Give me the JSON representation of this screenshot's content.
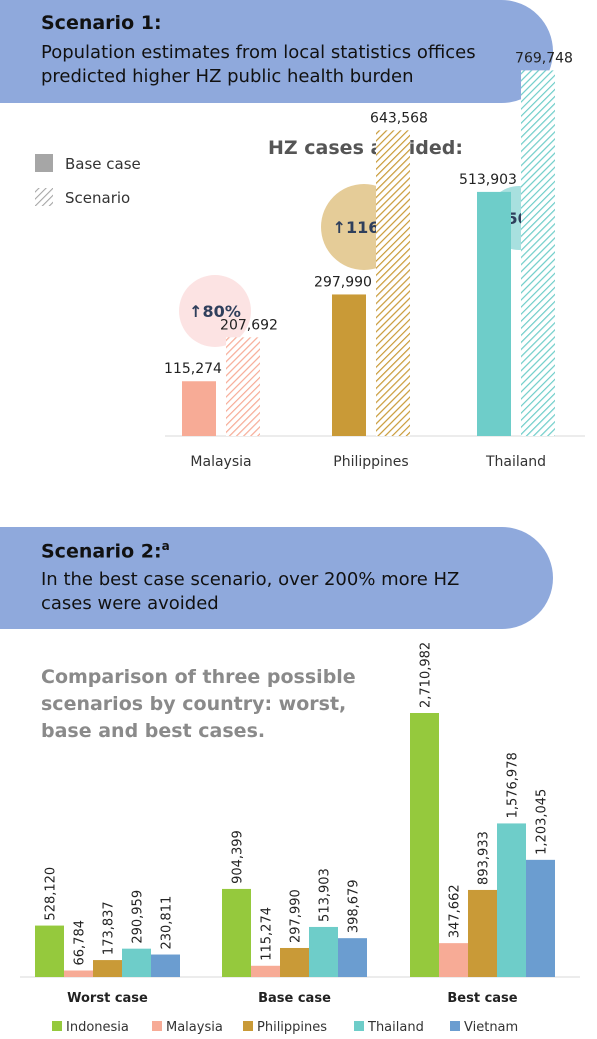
{
  "scenario1": {
    "title": "Scenario 1:",
    "text": "Population estimates from local statistics offices predicted higher HZ public health burden"
  },
  "scenario2": {
    "title": "Scenario 2:",
    "title_sup": "a",
    "text": "In the best case scenario, over 200% more HZ cases were avoided"
  },
  "colors": {
    "banner": "#8fa9dc",
    "Indonesia": "#95c93d",
    "Malaysia": "#f7ab96",
    "Philippines": "#c99a37",
    "Thailand": "#6ecdc9",
    "Vietnam": "#6b9dd0",
    "legend_base": "#a6a6a6",
    "legend_scenario": "#a6a6a6"
  },
  "chart_data": [
    {
      "type": "bar",
      "title": "HZ cases avoided:",
      "legend": [
        "Base case",
        "Scenario"
      ],
      "categories": [
        "Malaysia",
        "Philippines",
        "Thailand"
      ],
      "series": [
        {
          "name": "Base case",
          "values": [
            115274,
            297990,
            513903
          ]
        },
        {
          "name": "Scenario",
          "values": [
            207692,
            643568,
            769748
          ]
        }
      ],
      "labels": {
        "Base case": [
          "115,274",
          "297,990",
          "513,903"
        ],
        "Scenario": [
          "207,692",
          "643,568",
          "769,748"
        ]
      },
      "increase_labels": [
        "↑80%",
        "↑116%",
        "↑50%"
      ],
      "increase_colors": [
        "#fce3e3",
        "#e5cc98",
        "#a8e0df"
      ],
      "ylim": [
        0,
        800000
      ]
    },
    {
      "type": "bar",
      "title": "Comparison of three possible scenarios by country: worst, base and best cases.",
      "categories": [
        "Worst case",
        "Base case",
        "Best case"
      ],
      "series": [
        {
          "name": "Indonesia",
          "values": [
            528120,
            904399,
            2710982
          ],
          "labels": [
            "528,120",
            "904,399",
            "2,710,982"
          ]
        },
        {
          "name": "Malaysia",
          "values": [
            66784,
            115274,
            347662
          ],
          "labels": [
            "66,784",
            "115,274",
            "347,662"
          ]
        },
        {
          "name": "Philippines",
          "values": [
            173837,
            297990,
            893933
          ],
          "labels": [
            "173,837",
            "297,990",
            "893,933"
          ]
        },
        {
          "name": "Thailand",
          "values": [
            290959,
            513903,
            1576978
          ],
          "labels": [
            "290,959",
            "513,903",
            "1,576,978"
          ]
        },
        {
          "name": "Vietnam",
          "values": [
            230811,
            398679,
            1203045
          ],
          "labels": [
            "230,811",
            "398,679",
            "1,203,045"
          ]
        }
      ],
      "ylim": [
        0,
        2710982
      ]
    }
  ]
}
